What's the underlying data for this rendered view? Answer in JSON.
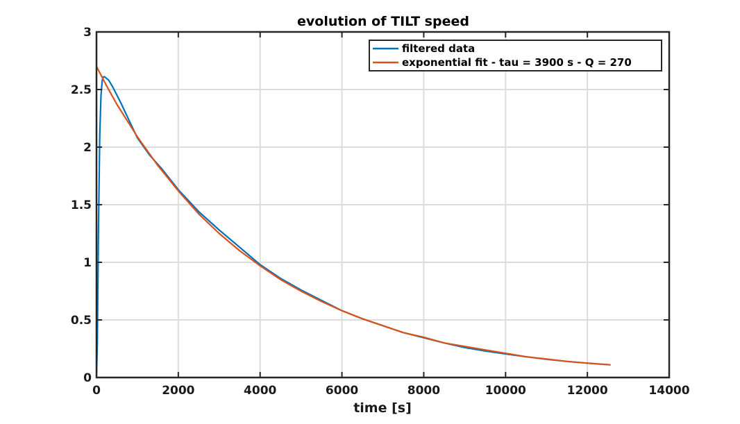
{
  "chart_data": {
    "type": "line",
    "title": "evolution of TILT speed",
    "xlabel": "time [s]",
    "ylabel": "",
    "xlim": [
      0,
      14000
    ],
    "ylim": [
      0,
      3
    ],
    "xticks": [
      0,
      2000,
      4000,
      6000,
      8000,
      10000,
      12000,
      14000
    ],
    "yticks": [
      0,
      0.5,
      1,
      1.5,
      2,
      2.5,
      3
    ],
    "ytick_labels": [
      "0",
      "0.5",
      "1",
      "1.5",
      "2",
      "2.5",
      "3"
    ],
    "grid": true,
    "legend_position": "top-right",
    "series": [
      {
        "name": "filtered data",
        "color": "#0072bd",
        "x": [
          0,
          20,
          50,
          80,
          110,
          140,
          170,
          200,
          300,
          400,
          600,
          800,
          1000,
          1300,
          1600,
          2000,
          2500,
          3000,
          3500,
          4000,
          4500,
          5000,
          5500,
          6000,
          6500,
          7000,
          7500,
          8000,
          8500,
          9000,
          9500,
          10000,
          10500,
          11000,
          11500,
          12000,
          12550
        ],
        "y": [
          0.0,
          0.3,
          1.3,
          2.1,
          2.45,
          2.58,
          2.61,
          2.61,
          2.58,
          2.52,
          2.38,
          2.23,
          2.08,
          1.93,
          1.81,
          1.63,
          1.44,
          1.28,
          1.13,
          0.98,
          0.86,
          0.76,
          0.67,
          0.58,
          0.51,
          0.45,
          0.39,
          0.345,
          0.3,
          0.26,
          0.23,
          0.205,
          0.18,
          0.158,
          0.14,
          0.125,
          0.11
        ]
      },
      {
        "name": "exponential fit - tau = 3900 s - Q = 270",
        "color": "#d95319",
        "x": [
          0,
          250,
          500,
          750,
          1000,
          1500,
          2000,
          2500,
          3000,
          3500,
          4000,
          4500,
          5000,
          5500,
          6000,
          6500,
          7000,
          7500,
          8000,
          8500,
          9000,
          9500,
          10000,
          10500,
          11000,
          11500,
          12000,
          12550
        ],
        "y": [
          2.7,
          2.53,
          2.37,
          2.23,
          2.09,
          1.84,
          1.62,
          1.42,
          1.25,
          1.1,
          0.97,
          0.85,
          0.75,
          0.66,
          0.58,
          0.51,
          0.45,
          0.39,
          0.35,
          0.3,
          0.27,
          0.24,
          0.21,
          0.18,
          0.16,
          0.14,
          0.125,
          0.11
        ]
      }
    ]
  }
}
